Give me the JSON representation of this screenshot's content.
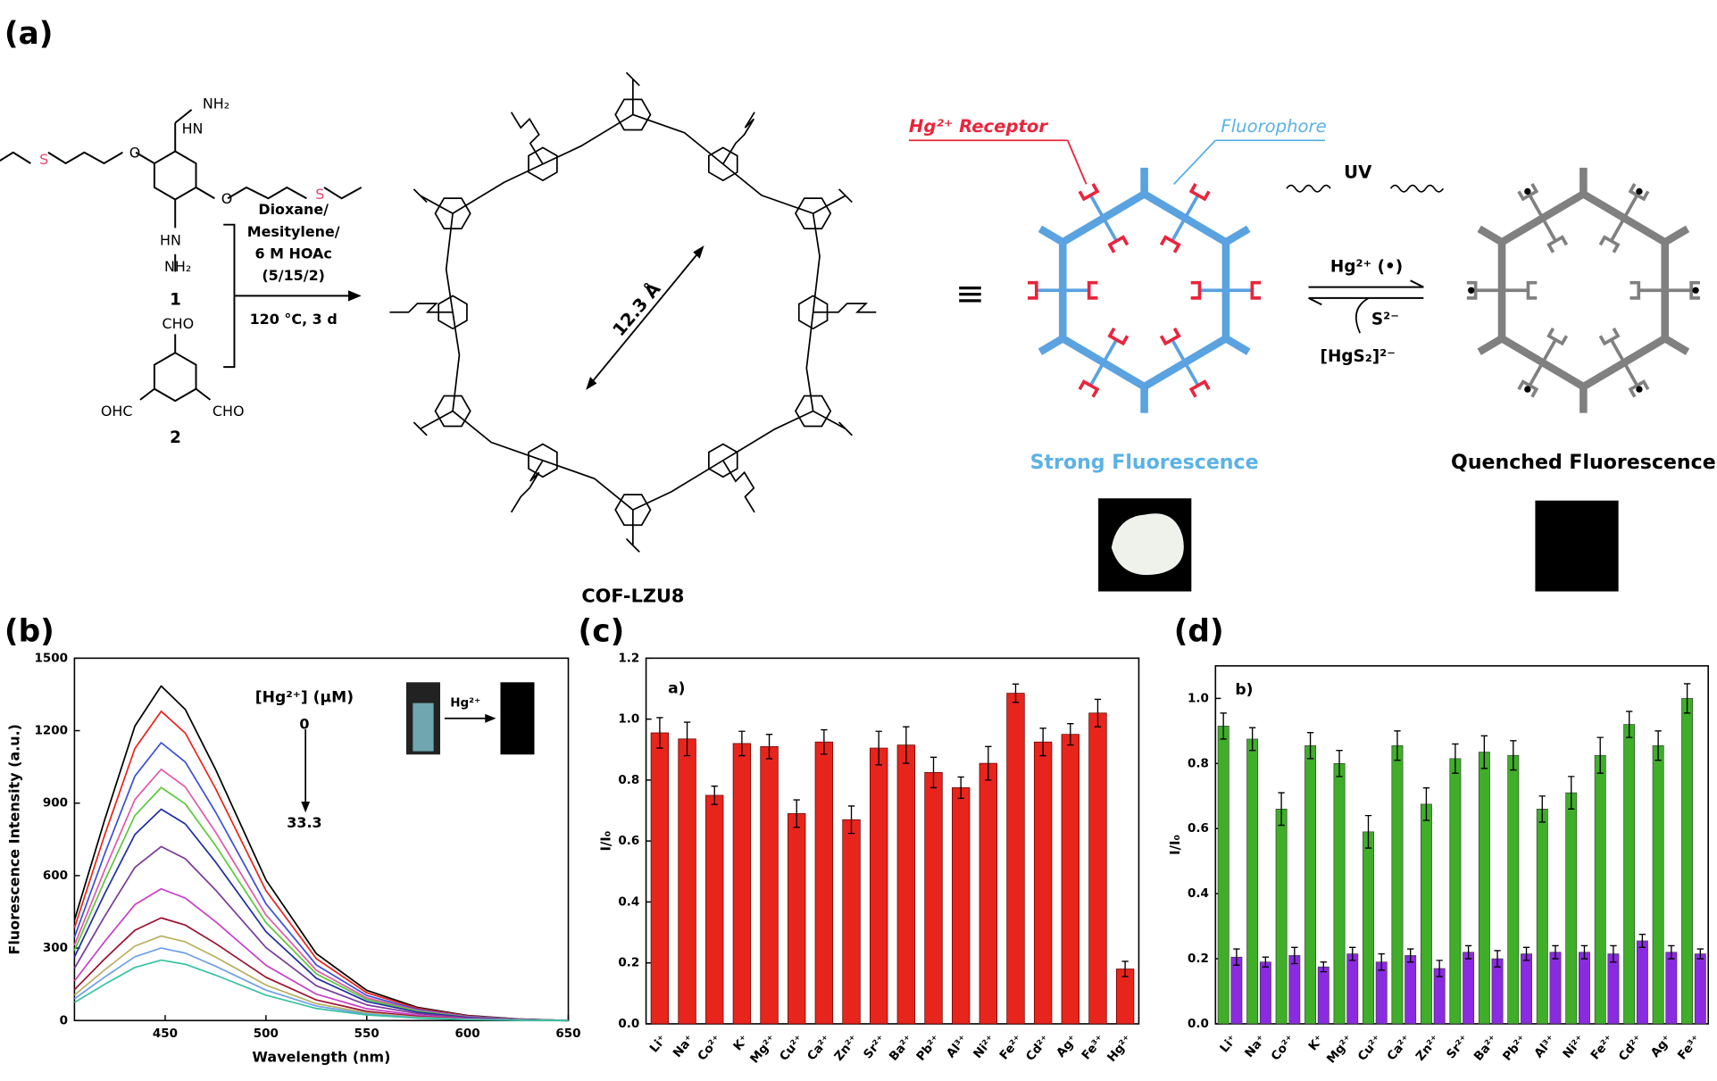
{
  "figure": {
    "panel_labels": [
      "(a)",
      "(b)",
      "(c)",
      "(d)"
    ]
  },
  "scheme": {
    "monomer1_labels": [
      "NH₂",
      "HN",
      "O",
      "S",
      "O",
      "S",
      "HN",
      "NH₂"
    ],
    "monomer1_number": "1",
    "monomer2_labels": [
      "CHO",
      "OHC",
      "CHO"
    ],
    "monomer2_number": "2",
    "conditions": [
      "Dioxane/",
      "Mesitylene/",
      "6 M HOAc",
      "(5/15/2)",
      "120 °C, 3 d"
    ],
    "pore_size": "12.3 Å",
    "cof_name": "COF-LZU8",
    "equivalent": "≡",
    "receptor_label": "Hg²⁺ Receptor",
    "fluorophore_label": "Fluorophore",
    "uv_label": "UV",
    "forward_reagent": "Hg²⁺ (•)",
    "reverse_reagent": "S²⁻",
    "byproduct": "[HgS₂]²⁻",
    "left_state": "Strong Fluorescence",
    "right_state": "Quenched Fluorescence"
  },
  "chart_data": [
    {
      "type": "line",
      "xlabel": "Wavelength (nm)",
      "ylabel": "Fluorescence Intensity (a.u.)",
      "annotations": [
        "[Hg²⁺] (μM)",
        "0",
        "33.3",
        "Hg²⁺"
      ],
      "x": [
        405,
        420,
        435,
        448,
        460,
        475,
        500,
        525,
        550,
        575,
        600,
        625,
        650
      ],
      "xlim": [
        405,
        650
      ],
      "xticks": [
        450,
        500,
        550,
        600,
        650
      ],
      "ylim": [
        0,
        1500
      ],
      "yticks": [
        0,
        300,
        600,
        900,
        1200,
        1500
      ],
      "series": [
        {
          "color": "#000000",
          "values": [
            416,
            831,
            1219,
            1385,
            1288,
            1039,
            582,
            277,
            125,
            55,
            21,
            7,
            0
          ]
        },
        {
          "color": "#e8251c",
          "values": [
            384,
            768,
            1126,
            1280,
            1190,
            960,
            538,
            256,
            115,
            51,
            19,
            6,
            0
          ]
        },
        {
          "color": "#3c4fd6",
          "values": [
            345,
            690,
            1012,
            1150,
            1070,
            863,
            483,
            230,
            104,
            46,
            17,
            6,
            0
          ]
        },
        {
          "color": "#e05aa8",
          "values": [
            312,
            624,
            915,
            1040,
            967,
            780,
            437,
            208,
            94,
            42,
            16,
            5,
            0
          ]
        },
        {
          "color": "#5cc83a",
          "values": [
            290,
            579,
            849,
            965,
            897,
            724,
            405,
            193,
            87,
            39,
            14,
            5,
            0
          ]
        },
        {
          "color": "#1f2fa0",
          "values": [
            263,
            525,
            770,
            875,
            814,
            656,
            368,
            175,
            79,
            35,
            13,
            4,
            0
          ]
        },
        {
          "color": "#7a3b98",
          "values": [
            216,
            432,
            634,
            720,
            670,
            540,
            302,
            144,
            65,
            29,
            11,
            4,
            0
          ]
        },
        {
          "color": "#c73fc7",
          "values": [
            164,
            327,
            480,
            545,
            507,
            409,
            229,
            109,
            49,
            22,
            8,
            3,
            0
          ]
        },
        {
          "color": "#9b1030",
          "values": [
            128,
            255,
            374,
            425,
            395,
            319,
            179,
            85,
            38,
            17,
            6,
            2,
            0
          ]
        },
        {
          "color": "#b8b060",
          "values": [
            105,
            210,
            308,
            350,
            326,
            263,
            147,
            70,
            32,
            14,
            5,
            2,
            0
          ]
        },
        {
          "color": "#6fa0e8",
          "values": [
            90,
            180,
            264,
            300,
            279,
            225,
            126,
            60,
            27,
            12,
            5,
            2,
            0
          ]
        },
        {
          "color": "#38c2a0",
          "values": [
            75,
            150,
            220,
            250,
            233,
            188,
            105,
            50,
            23,
            10,
            4,
            1,
            0
          ]
        }
      ]
    },
    {
      "type": "bar",
      "ylabel": "I/I₀",
      "annotation": "a)",
      "color": "#e8251c",
      "categories": [
        "Li⁺",
        "Na⁺",
        "Co²⁺",
        "K⁺",
        "Mg²⁺",
        "Cu²⁺",
        "Ca²⁺",
        "Zn²⁺",
        "Sr²⁺",
        "Ba²⁺",
        "Pb²⁺",
        "Al³⁺",
        "Ni²⁺",
        "Fe²⁺",
        "Cd²⁺",
        "Ag⁺",
        "Fe³⁺",
        "Hg²⁺"
      ],
      "values": [
        0.955,
        0.935,
        0.75,
        0.92,
        0.91,
        0.69,
        0.925,
        0.67,
        0.905,
        0.915,
        0.825,
        0.775,
        0.855,
        1.085,
        0.925,
        0.95,
        1.02,
        0.18
      ],
      "errors": [
        0.05,
        0.055,
        0.03,
        0.04,
        0.04,
        0.045,
        0.04,
        0.045,
        0.055,
        0.06,
        0.05,
        0.035,
        0.055,
        0.03,
        0.045,
        0.035,
        0.045,
        0.025
      ],
      "ylim": [
        0,
        1.2
      ],
      "yticks": [
        {
          "value": 0,
          "label": "0.0"
        },
        0.2,
        0.4,
        0.6,
        0.8,
        {
          "value": 1,
          "label": "1.0"
        },
        1.2
      ]
    },
    {
      "type": "grouped_bar",
      "ylabel": "I/I₀",
      "annotation": "b)",
      "categories": [
        "Li⁺",
        "Na⁺",
        "Co²⁺",
        "K⁺",
        "Mg²⁺",
        "Cu²⁺",
        "Ca²⁺",
        "Zn²⁺",
        "Sr²⁺",
        "Ba²⁺",
        "Pb²⁺",
        "Al³⁺",
        "Ni²⁺",
        "Fe²⁺",
        "Cd²⁺",
        "Ag⁺",
        "Fe³⁺"
      ],
      "series": [
        {
          "color": "#3fae29",
          "values": [
            0.915,
            0.875,
            0.66,
            0.855,
            0.8,
            0.59,
            0.855,
            0.675,
            0.815,
            0.835,
            0.825,
            0.66,
            0.71,
            0.825,
            0.92,
            0.855,
            1.0
          ],
          "errors": [
            0.04,
            0.035,
            0.05,
            0.04,
            0.04,
            0.05,
            0.045,
            0.05,
            0.045,
            0.05,
            0.045,
            0.04,
            0.05,
            0.055,
            0.04,
            0.045,
            0.045
          ]
        },
        {
          "color": "#8a2be2",
          "values": [
            0.205,
            0.19,
            0.21,
            0.175,
            0.215,
            0.19,
            0.21,
            0.17,
            0.22,
            0.2,
            0.215,
            0.22,
            0.22,
            0.215,
            0.255,
            0.22,
            0.215
          ],
          "errors": [
            0.025,
            0.015,
            0.025,
            0.015,
            0.02,
            0.025,
            0.02,
            0.025,
            0.02,
            0.025,
            0.02,
            0.02,
            0.02,
            0.025,
            0.02,
            0.02,
            0.015
          ]
        }
      ],
      "ylim": [
        0,
        1.1
      ],
      "yticks": [
        {
          "value": 0,
          "label": "0.0"
        },
        0.2,
        0.4,
        0.6,
        0.8,
        {
          "value": 1,
          "label": "1.0"
        }
      ]
    }
  ]
}
